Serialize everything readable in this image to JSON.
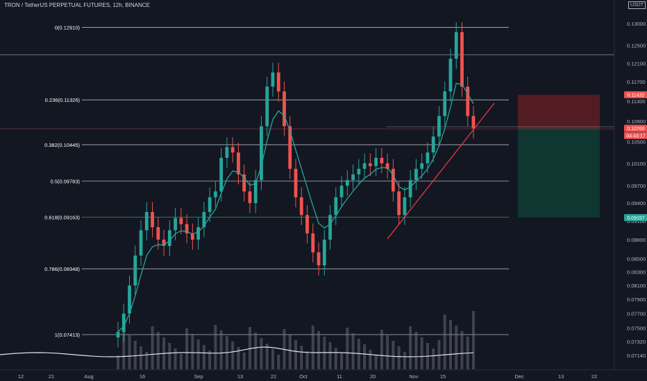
{
  "header": {
    "title": "TRON / TetherUS PERPETUAL FUTURES, 12h, BINANCE",
    "currency": "USDT"
  },
  "colors": {
    "background": "#131722",
    "up": "#26a69a",
    "down": "#ef5350",
    "fib_line": "#d1d4dc",
    "fib_618": "#4caf50",
    "ma": "#26a69a",
    "trendline": "#f23645",
    "stop_zone": "#5b1d24",
    "target_zone": "#0f3a33"
  },
  "chart_data": {
    "type": "candlestick",
    "title": "TRON / TetherUS PERPETUAL FUTURES, 12h, BINANCE",
    "y_axis": {
      "ticks": [
        "0.13000",
        "0.12500",
        "0.12100",
        "0.11700",
        "0.11300",
        "0.10900",
        "0.10500",
        "0.10100",
        "0.09700",
        "0.09400",
        "0.09100",
        "0.08800",
        "0.08500",
        "0.08300",
        "0.08100",
        "0.07900",
        "0.07700",
        "0.07500",
        "0.07320",
        "0.07140"
      ],
      "scale": "log"
    },
    "x_axis": {
      "ticks": [
        "12",
        "21",
        "Aug",
        "16",
        "Sep",
        "13",
        "22",
        "Oct",
        "11",
        "20",
        "Nov",
        "15",
        "Dec",
        "13",
        "22"
      ]
    },
    "fibonacci": [
      {
        "label": "0(0.12910)",
        "level": 0.1291
      },
      {
        "label": "0.236(0.11326)",
        "level": 0.11326
      },
      {
        "label": "0.382(0.10445)",
        "level": 0.10445
      },
      {
        "label": "0.5(0.09783)",
        "level": 0.09783
      },
      {
        "label": "0.618(0.09163)",
        "level": 0.09163
      },
      {
        "label": "0.786(0.08348)",
        "level": 0.08348
      },
      {
        "label": "1(0.07413)",
        "level": 0.07413
      }
    ],
    "price_tags": [
      {
        "text": "0.11432",
        "level": 0.11432,
        "color": "#ef5350"
      },
      {
        "text": "0.10760",
        "level": 0.1076,
        "color": "#ef5350"
      },
      {
        "text": "04:43:17",
        "level": 0.107,
        "color": "#ef5350"
      },
      {
        "text": "0.09157",
        "level": 0.09157,
        "color": "#26a69a"
      }
    ],
    "position": {
      "stop": 0.11432,
      "entry": 0.1076,
      "target": 0.09157
    },
    "candles_close": [
      0.0745,
      0.077,
      0.081,
      0.0855,
      0.0895,
      0.0925,
      0.09,
      0.088,
      0.087,
      0.0895,
      0.0915,
      0.0905,
      0.089,
      0.088,
      0.09,
      0.0925,
      0.095,
      0.096,
      0.102,
      0.104,
      0.103,
      0.099,
      0.096,
      0.094,
      0.098,
      0.108,
      0.116,
      0.119,
      0.115,
      0.108,
      0.1,
      0.095,
      0.092,
      0.089,
      0.086,
      0.084,
      0.088,
      0.092,
      0.095,
      0.097,
      0.098,
      0.099,
      0.1,
      0.101,
      0.1005,
      0.102,
      0.101,
      0.1,
      0.096,
      0.092,
      0.095,
      0.098,
      0.1,
      0.101,
      0.103,
      0.106,
      0.11,
      0.115,
      0.122,
      0.128,
      0.116,
      0.11,
      0.1076
    ]
  }
}
